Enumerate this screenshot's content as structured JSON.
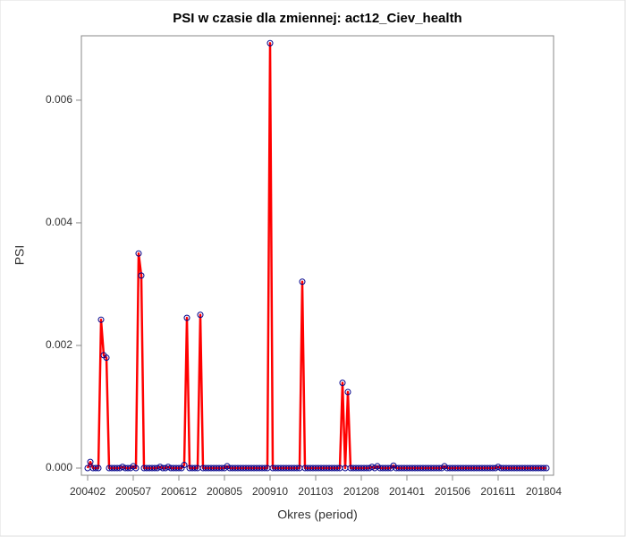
{
  "chart_data": {
    "type": "line",
    "title": "PSI w czasie dla zmiennej: act12_Ciev_health",
    "x_label": "Okres (period)",
    "y_label": "PSI",
    "categories": [
      "200402",
      null,
      null,
      null,
      null,
      null,
      null,
      null,
      null,
      null,
      null,
      null,
      null,
      null,
      null,
      null,
      null,
      "200507",
      null,
      null,
      null,
      null,
      null,
      null,
      null,
      null,
      null,
      null,
      null,
      null,
      null,
      null,
      null,
      null,
      "200612",
      null,
      null,
      null,
      null,
      null,
      null,
      null,
      null,
      null,
      null,
      null,
      null,
      null,
      null,
      null,
      null,
      "200805",
      null,
      null,
      null,
      null,
      null,
      null,
      null,
      null,
      null,
      null,
      null,
      null,
      null,
      null,
      null,
      null,
      "200910",
      null,
      null,
      null,
      null,
      null,
      null,
      null,
      null,
      null,
      null,
      null,
      null,
      null,
      null,
      null,
      null,
      "201103",
      null,
      null,
      null,
      null,
      null,
      null,
      null,
      null,
      null,
      null,
      null,
      null,
      null,
      null,
      null,
      null,
      "201208",
      null,
      null,
      null,
      null,
      null,
      null,
      null,
      null,
      null,
      null,
      null,
      null,
      null,
      null,
      null,
      null,
      "201401",
      null,
      null,
      null,
      null,
      null,
      null,
      null,
      null,
      null,
      null,
      null,
      null,
      null,
      null,
      null,
      null,
      "201506",
      null,
      null,
      null,
      null,
      null,
      null,
      null,
      null,
      null,
      null,
      null,
      null,
      null,
      null,
      null,
      null,
      "201611",
      null,
      null,
      null,
      null,
      null,
      null,
      null,
      null,
      null,
      null,
      null,
      null,
      null,
      null,
      null,
      null,
      "201804",
      null
    ],
    "series": [
      {
        "name": "PSI",
        "color": "#ff0000",
        "marker_color": "#00008b",
        "values": [
          0,
          0.0001,
          0,
          0,
          0,
          0.00242,
          0.00184,
          0.0018,
          0,
          0,
          0,
          0,
          0,
          2e-05,
          0,
          0,
          0,
          3e-05,
          0,
          0.0035,
          0.00314,
          0,
          0,
          0,
          0,
          0,
          0,
          2e-05,
          0,
          0,
          2e-05,
          0,
          0,
          0,
          0,
          0,
          5e-05,
          0.00245,
          0,
          0,
          0,
          0,
          0.0025,
          0,
          0,
          0,
          0,
          0,
          0,
          0,
          0,
          0,
          3e-05,
          0,
          0,
          0,
          0,
          0,
          0,
          0,
          0,
          0,
          0,
          0,
          0,
          0,
          0,
          0,
          0.00693,
          0,
          0,
          0,
          0,
          0,
          0,
          0,
          0,
          0,
          0,
          0,
          0.00304,
          0,
          0,
          0,
          0,
          0,
          0,
          0,
          0,
          0,
          0,
          0,
          0,
          0,
          0,
          0.00139,
          0,
          0.00124,
          0,
          0,
          0,
          0,
          0,
          0,
          0,
          0,
          2e-05,
          0,
          3e-05,
          0,
          0,
          0,
          0,
          0,
          4e-05,
          0,
          0,
          0,
          0,
          0,
          0,
          0,
          0,
          0,
          0,
          0,
          0,
          0,
          0,
          0,
          0,
          0,
          0,
          3e-05,
          0,
          0,
          0,
          0,
          0,
          0,
          0,
          0,
          0,
          0,
          0,
          0,
          0,
          0,
          0,
          0,
          0,
          0,
          0,
          2e-05,
          0,
          0,
          0,
          0,
          0,
          0,
          0,
          0,
          0,
          0,
          0,
          0,
          0,
          0,
          0,
          0,
          0,
          0
        ]
      }
    ],
    "ylim": [
      -0.000117,
      0.00705
    ],
    "yticks": [
      {
        "value": 0,
        "label": "0.000"
      },
      {
        "value": 0.002,
        "label": "0.002"
      },
      {
        "value": 0.004,
        "label": "0.004"
      },
      {
        "value": 0.006,
        "label": "0.006"
      }
    ]
  }
}
